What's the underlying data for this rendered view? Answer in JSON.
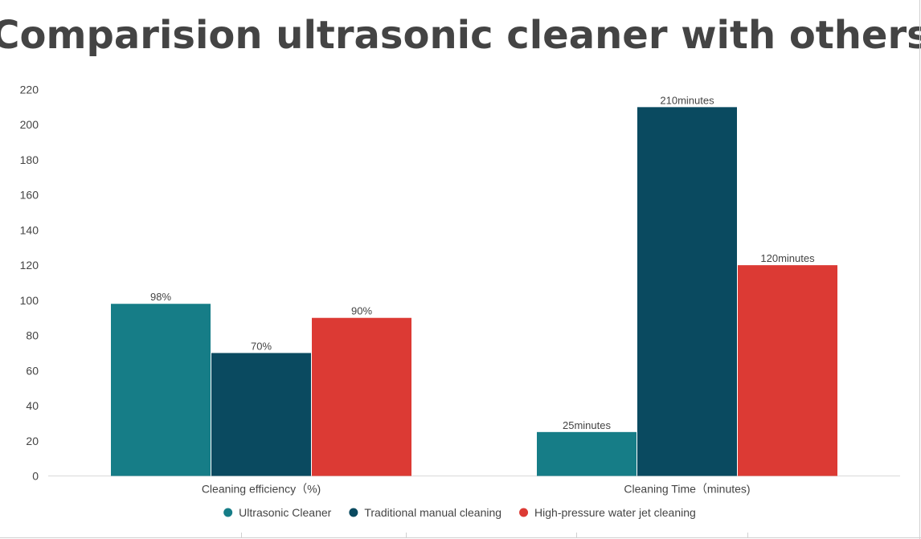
{
  "colors": {
    "background": "#ffffff",
    "text": "#444444",
    "axis_line": "#d9d9d9",
    "frame": "#d0d0d0"
  },
  "chart_data": {
    "type": "bar",
    "title": "Comparision ultrasonic cleaner with others",
    "categories": [
      "Cleaning efficiency（%)",
      "Cleaning Time（minutes)"
    ],
    "series": [
      {
        "name": "Ultrasonic Cleaner",
        "color": "#167d87",
        "values": [
          98,
          25
        ],
        "labels": [
          "98%",
          "25minutes"
        ]
      },
      {
        "name": "Traditional manual cleaning",
        "color": "#0a4a60",
        "values": [
          70,
          210
        ],
        "labels": [
          "70%",
          "210minutes"
        ]
      },
      {
        "name": "High-pressure water jet cleaning",
        "color": "#dc3a34",
        "values": [
          90,
          120
        ],
        "labels": [
          "90%",
          "120minutes"
        ]
      }
    ],
    "y_ticks": [
      "0",
      "20",
      "40",
      "60",
      "80",
      "100",
      "120",
      "140",
      "160",
      "180",
      "200",
      "220"
    ],
    "ylim": [
      0,
      220
    ],
    "grid": false,
    "legend_position": "bottom-center",
    "xlabel": "",
    "ylabel": ""
  }
}
